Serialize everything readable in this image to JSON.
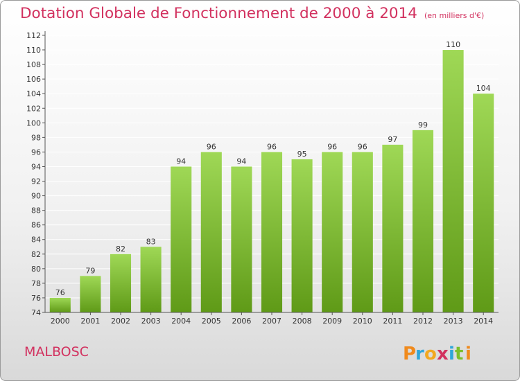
{
  "header": {
    "title": "Dotation Globale de Fonctionnement de 2000 à 2014",
    "subtitle": "(en milliers d'€)"
  },
  "footer": {
    "commune": "MALBOSC",
    "logo_text": "Proxiti"
  },
  "colors": {
    "title": "#d2315f",
    "bar_light": "#9fd856",
    "bar_dark": "#5f9a17",
    "axis": "#555555",
    "grid": "#ffffff"
  },
  "chart_data": {
    "type": "bar",
    "title": "Dotation Globale de Fonctionnement de 2000 à 2014",
    "subtitle": "(en milliers d'€)",
    "categories": [
      "2000",
      "2001",
      "2002",
      "2003",
      "2004",
      "2005",
      "2006",
      "2007",
      "2008",
      "2009",
      "2010",
      "2011",
      "2012",
      "2013",
      "2014"
    ],
    "values": [
      76,
      79,
      82,
      83,
      94,
      96,
      94,
      96,
      95,
      96,
      96,
      97,
      99,
      110,
      104
    ],
    "xlabel": "",
    "ylabel": "",
    "ylim": [
      74,
      112
    ],
    "yticks": [
      74,
      76,
      78,
      80,
      82,
      84,
      86,
      88,
      90,
      92,
      94,
      96,
      98,
      100,
      102,
      104,
      106,
      108,
      110,
      112
    ],
    "grid": true,
    "legend": "none"
  }
}
